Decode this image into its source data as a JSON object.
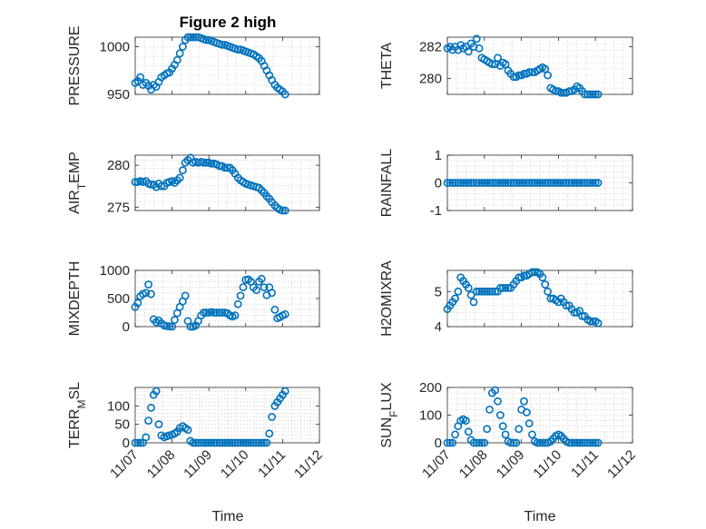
{
  "title": "Figure 2 high",
  "xlabel": "Time",
  "x_ticks": [
    "11/07",
    "11/08",
    "11/09",
    "11/10",
    "11/11",
    "11/12"
  ],
  "marker_color": "#0072BD",
  "chart_data": [
    {
      "type": "scatter",
      "ylabel": "PRESSURE",
      "ylim": [
        950,
        1010
      ],
      "yticks": [
        950,
        1000
      ],
      "xlim": [
        0,
        5
      ],
      "grid": true,
      "x": [
        0.0,
        0.07,
        0.14,
        0.21,
        0.29,
        0.36,
        0.43,
        0.5,
        0.57,
        0.64,
        0.71,
        0.79,
        0.86,
        0.93,
        1.0,
        1.07,
        1.14,
        1.21,
        1.29,
        1.36,
        1.43,
        1.5,
        1.57,
        1.64,
        1.71,
        1.79,
        1.86,
        1.93,
        2.0,
        2.07,
        2.14,
        2.21,
        2.29,
        2.36,
        2.43,
        2.5,
        2.57,
        2.64,
        2.71,
        2.79,
        2.86,
        2.93,
        3.0,
        3.07,
        3.14,
        3.21,
        3.29,
        3.36,
        3.43,
        3.5,
        3.57,
        3.64,
        3.71,
        3.79,
        3.86,
        3.93,
        4.0,
        4.07
      ],
      "y": [
        962,
        964,
        968,
        960,
        962,
        959,
        955,
        960,
        958,
        963,
        968,
        970,
        972,
        973,
        977,
        981,
        986,
        993,
        1000,
        1007,
        1010,
        1010,
        1010,
        1010,
        1010,
        1009,
        1008,
        1007,
        1007,
        1006,
        1005,
        1004,
        1003,
        1002,
        1002,
        1001,
        1000,
        999,
        998,
        997,
        997,
        996,
        995,
        994,
        993,
        992,
        990,
        988,
        985,
        980,
        975,
        970,
        965,
        960,
        957,
        955,
        953,
        950
      ]
    },
    {
      "type": "scatter",
      "ylabel": "THETA",
      "ylim": [
        279,
        282.6
      ],
      "yticks": [
        280,
        282
      ],
      "xlim": [
        0,
        5
      ],
      "grid": true,
      "x": [
        0.0,
        0.07,
        0.14,
        0.21,
        0.29,
        0.36,
        0.43,
        0.5,
        0.57,
        0.64,
        0.71,
        0.79,
        0.86,
        0.93,
        1.0,
        1.07,
        1.14,
        1.21,
        1.29,
        1.36,
        1.43,
        1.5,
        1.57,
        1.64,
        1.71,
        1.79,
        1.86,
        1.93,
        2.0,
        2.07,
        2.14,
        2.21,
        2.29,
        2.36,
        2.43,
        2.5,
        2.57,
        2.64,
        2.71,
        2.79,
        2.86,
        2.93,
        3.0,
        3.07,
        3.14,
        3.21,
        3.29,
        3.36,
        3.43,
        3.5,
        3.57,
        3.64,
        3.71,
        3.79,
        3.86,
        3.93,
        4.0,
        4.07
      ],
      "y": [
        281.9,
        282.0,
        281.8,
        282.0,
        281.8,
        282.1,
        281.9,
        282.0,
        281.7,
        282.2,
        282.0,
        282.5,
        281.9,
        281.3,
        281.2,
        281.1,
        281.0,
        280.9,
        280.9,
        281.3,
        280.8,
        281.0,
        280.9,
        280.5,
        280.3,
        280.1,
        280.1,
        280.2,
        280.2,
        280.3,
        280.3,
        280.4,
        280.4,
        280.4,
        280.5,
        280.6,
        280.7,
        280.6,
        280.2,
        279.4,
        279.3,
        279.2,
        279.2,
        279.1,
        279.1,
        279.1,
        279.2,
        279.2,
        279.3,
        279.5,
        279.4,
        279.2,
        279.0,
        279.0,
        279.0,
        279.0,
        279.0,
        279.0
      ]
    },
    {
      "type": "scatter",
      "ylabel": "AIR_TEMP",
      "ylim": [
        274.6,
        281.2
      ],
      "yticks": [
        275,
        280
      ],
      "xlim": [
        0,
        5
      ],
      "grid": true,
      "x": [
        0.0,
        0.07,
        0.14,
        0.21,
        0.29,
        0.36,
        0.43,
        0.5,
        0.57,
        0.64,
        0.71,
        0.79,
        0.86,
        0.93,
        1.0,
        1.07,
        1.14,
        1.21,
        1.29,
        1.36,
        1.43,
        1.5,
        1.57,
        1.64,
        1.71,
        1.79,
        1.86,
        1.93,
        2.0,
        2.07,
        2.14,
        2.21,
        2.29,
        2.36,
        2.43,
        2.5,
        2.57,
        2.64,
        2.71,
        2.79,
        2.86,
        2.93,
        3.0,
        3.07,
        3.14,
        3.21,
        3.29,
        3.36,
        3.43,
        3.5,
        3.57,
        3.64,
        3.71,
        3.79,
        3.86,
        3.93,
        4.0,
        4.07
      ],
      "y": [
        278.0,
        278.0,
        278.1,
        278.0,
        278.1,
        277.8,
        277.7,
        277.7,
        277.4,
        277.8,
        277.5,
        277.5,
        277.9,
        278.0,
        278.1,
        277.9,
        278.2,
        278.5,
        279.4,
        280.3,
        280.6,
        280.9,
        280.3,
        280.4,
        280.3,
        280.4,
        280.3,
        280.3,
        280.3,
        280.2,
        280.2,
        280.1,
        279.9,
        279.9,
        279.7,
        279.7,
        279.7,
        279.4,
        279.0,
        278.5,
        278.2,
        278.0,
        277.8,
        277.7,
        277.6,
        277.5,
        277.4,
        277.3,
        277.0,
        276.7,
        276.3,
        276.0,
        275.6,
        275.2,
        274.9,
        274.7,
        274.6,
        274.6
      ]
    },
    {
      "type": "scatter",
      "ylabel": "RAINFALL",
      "ylim": [
        -1,
        1
      ],
      "yticks": [
        -1,
        0,
        1
      ],
      "xlim": [
        0,
        5
      ],
      "grid": true,
      "x": [
        0.0,
        0.07,
        0.14,
        0.21,
        0.29,
        0.36,
        0.43,
        0.5,
        0.57,
        0.64,
        0.71,
        0.79,
        0.86,
        0.93,
        1.0,
        1.07,
        1.14,
        1.21,
        1.29,
        1.36,
        1.43,
        1.5,
        1.57,
        1.64,
        1.71,
        1.79,
        1.86,
        1.93,
        2.0,
        2.07,
        2.14,
        2.21,
        2.29,
        2.36,
        2.43,
        2.5,
        2.57,
        2.64,
        2.71,
        2.79,
        2.86,
        2.93,
        3.0,
        3.07,
        3.14,
        3.21,
        3.29,
        3.36,
        3.43,
        3.5,
        3.57,
        3.64,
        3.71,
        3.79,
        3.86,
        3.93,
        4.0,
        4.07
      ],
      "y": [
        0,
        0,
        0,
        0,
        0,
        0,
        0,
        0,
        0,
        0,
        0,
        0,
        0,
        0,
        0,
        0,
        0,
        0,
        0,
        0,
        0,
        0,
        0,
        0,
        0,
        0,
        0,
        0,
        0,
        0,
        0,
        0,
        0,
        0,
        0,
        0,
        0,
        0,
        0,
        0,
        0,
        0,
        0,
        0,
        0,
        0,
        0,
        0,
        0,
        0,
        0,
        0,
        0,
        0,
        0,
        0,
        0,
        0
      ]
    },
    {
      "type": "scatter",
      "ylabel": "MIXDEPTH",
      "ylim": [
        0,
        1000
      ],
      "yticks": [
        0,
        500,
        1000
      ],
      "xlim": [
        0,
        5
      ],
      "grid": true,
      "x": [
        0.0,
        0.07,
        0.14,
        0.21,
        0.29,
        0.36,
        0.43,
        0.5,
        0.57,
        0.64,
        0.71,
        0.79,
        0.86,
        0.93,
        1.0,
        1.07,
        1.14,
        1.21,
        1.29,
        1.36,
        1.43,
        1.5,
        1.57,
        1.64,
        1.71,
        1.79,
        1.86,
        1.93,
        2.0,
        2.07,
        2.14,
        2.21,
        2.29,
        2.36,
        2.43,
        2.5,
        2.57,
        2.64,
        2.71,
        2.79,
        2.86,
        2.93,
        3.0,
        3.07,
        3.14,
        3.21,
        3.29,
        3.36,
        3.43,
        3.5,
        3.57,
        3.64,
        3.71,
        3.79,
        3.86,
        3.93,
        4.0,
        4.07
      ],
      "y": [
        350,
        420,
        540,
        580,
        600,
        750,
        580,
        130,
        80,
        110,
        60,
        20,
        10,
        5,
        0,
        120,
        240,
        350,
        450,
        550,
        100,
        0,
        0,
        20,
        100,
        200,
        250,
        250,
        250,
        260,
        250,
        250,
        250,
        250,
        250,
        240,
        200,
        180,
        200,
        400,
        550,
        700,
        830,
        840,
        800,
        700,
        650,
        800,
        850,
        700,
        560,
        700,
        600,
        300,
        150,
        170,
        200,
        220
      ]
    },
    {
      "type": "scatter",
      "ylabel": "H2OMIXRA",
      "ylim": [
        4,
        5.6
      ],
      "yticks": [
        4,
        5
      ],
      "xlim": [
        0,
        5
      ],
      "grid": true,
      "x": [
        0.0,
        0.07,
        0.14,
        0.21,
        0.29,
        0.36,
        0.43,
        0.5,
        0.57,
        0.64,
        0.71,
        0.79,
        0.86,
        0.93,
        1.0,
        1.07,
        1.14,
        1.21,
        1.29,
        1.36,
        1.43,
        1.5,
        1.57,
        1.64,
        1.71,
        1.79,
        1.86,
        1.93,
        2.0,
        2.07,
        2.14,
        2.21,
        2.29,
        2.36,
        2.43,
        2.5,
        2.57,
        2.64,
        2.71,
        2.79,
        2.86,
        2.93,
        3.0,
        3.07,
        3.14,
        3.21,
        3.29,
        3.36,
        3.43,
        3.5,
        3.57,
        3.64,
        3.71,
        3.79,
        3.86,
        3.93,
        4.0,
        4.07
      ],
      "y": [
        4.5,
        4.6,
        4.7,
        4.8,
        5.0,
        5.4,
        5.3,
        5.2,
        5.1,
        4.9,
        4.7,
        5.0,
        5.0,
        5.0,
        5.0,
        5.0,
        5.0,
        5.0,
        5.0,
        5.0,
        5.1,
        5.1,
        5.1,
        5.1,
        5.1,
        5.2,
        5.3,
        5.4,
        5.4,
        5.45,
        5.45,
        5.5,
        5.55,
        5.55,
        5.55,
        5.5,
        5.4,
        5.2,
        5.0,
        4.8,
        4.8,
        4.75,
        4.7,
        4.8,
        4.7,
        4.6,
        4.6,
        4.5,
        4.4,
        4.4,
        4.45,
        4.3,
        4.3,
        4.2,
        4.15,
        4.15,
        4.15,
        4.1
      ]
    },
    {
      "type": "scatter",
      "ylabel": "TERR_MSL",
      "ylim": [
        0,
        150
      ],
      "yticks": [
        0,
        50,
        100
      ],
      "xlim": [
        0,
        5
      ],
      "grid": true,
      "x": [
        0.0,
        0.07,
        0.14,
        0.21,
        0.29,
        0.36,
        0.43,
        0.5,
        0.57,
        0.64,
        0.71,
        0.79,
        0.86,
        0.93,
        1.0,
        1.07,
        1.14,
        1.21,
        1.29,
        1.36,
        1.43,
        1.5,
        1.57,
        1.64,
        1.71,
        1.79,
        1.86,
        1.93,
        2.0,
        2.07,
        2.14,
        2.21,
        2.29,
        2.36,
        2.43,
        2.5,
        2.57,
        2.64,
        2.71,
        2.79,
        2.86,
        2.93,
        3.0,
        3.07,
        3.14,
        3.21,
        3.29,
        3.36,
        3.43,
        3.5,
        3.57,
        3.64,
        3.71,
        3.79,
        3.86,
        3.93,
        4.0,
        4.07
      ],
      "y": [
        0,
        0,
        0,
        0,
        15,
        60,
        95,
        130,
        140,
        50,
        20,
        15,
        18,
        20,
        22,
        25,
        30,
        40,
        45,
        40,
        35,
        5,
        0,
        0,
        0,
        0,
        0,
        0,
        0,
        0,
        0,
        0,
        0,
        0,
        0,
        0,
        0,
        0,
        0,
        0,
        0,
        0,
        0,
        0,
        0,
        0,
        0,
        0,
        0,
        0,
        0,
        25,
        70,
        100,
        110,
        120,
        130,
        140
      ]
    },
    {
      "type": "scatter",
      "ylabel": "SUN_FLUX",
      "ylim": [
        0,
        200
      ],
      "yticks": [
        0,
        100,
        200
      ],
      "xlim": [
        0,
        5
      ],
      "grid": true,
      "x": [
        0.0,
        0.07,
        0.14,
        0.21,
        0.29,
        0.36,
        0.43,
        0.5,
        0.57,
        0.64,
        0.71,
        0.79,
        0.86,
        0.93,
        1.0,
        1.07,
        1.14,
        1.21,
        1.29,
        1.36,
        1.43,
        1.5,
        1.57,
        1.64,
        1.71,
        1.79,
        1.86,
        1.93,
        2.0,
        2.07,
        2.14,
        2.21,
        2.29,
        2.36,
        2.43,
        2.5,
        2.57,
        2.64,
        2.71,
        2.79,
        2.86,
        2.93,
        3.0,
        3.07,
        3.14,
        3.21,
        3.29,
        3.36,
        3.43,
        3.5,
        3.57,
        3.64,
        3.71,
        3.79,
        3.86,
        3.93,
        4.0,
        4.07
      ],
      "y": [
        0,
        0,
        0,
        30,
        60,
        80,
        85,
        80,
        40,
        10,
        0,
        0,
        0,
        0,
        0,
        50,
        120,
        180,
        190,
        150,
        100,
        60,
        30,
        5,
        0,
        0,
        0,
        50,
        120,
        150,
        110,
        70,
        30,
        5,
        0,
        0,
        0,
        0,
        0,
        5,
        15,
        25,
        30,
        25,
        15,
        5,
        0,
        0,
        0,
        0,
        0,
        0,
        0,
        0,
        0,
        0,
        0,
        0
      ]
    }
  ]
}
